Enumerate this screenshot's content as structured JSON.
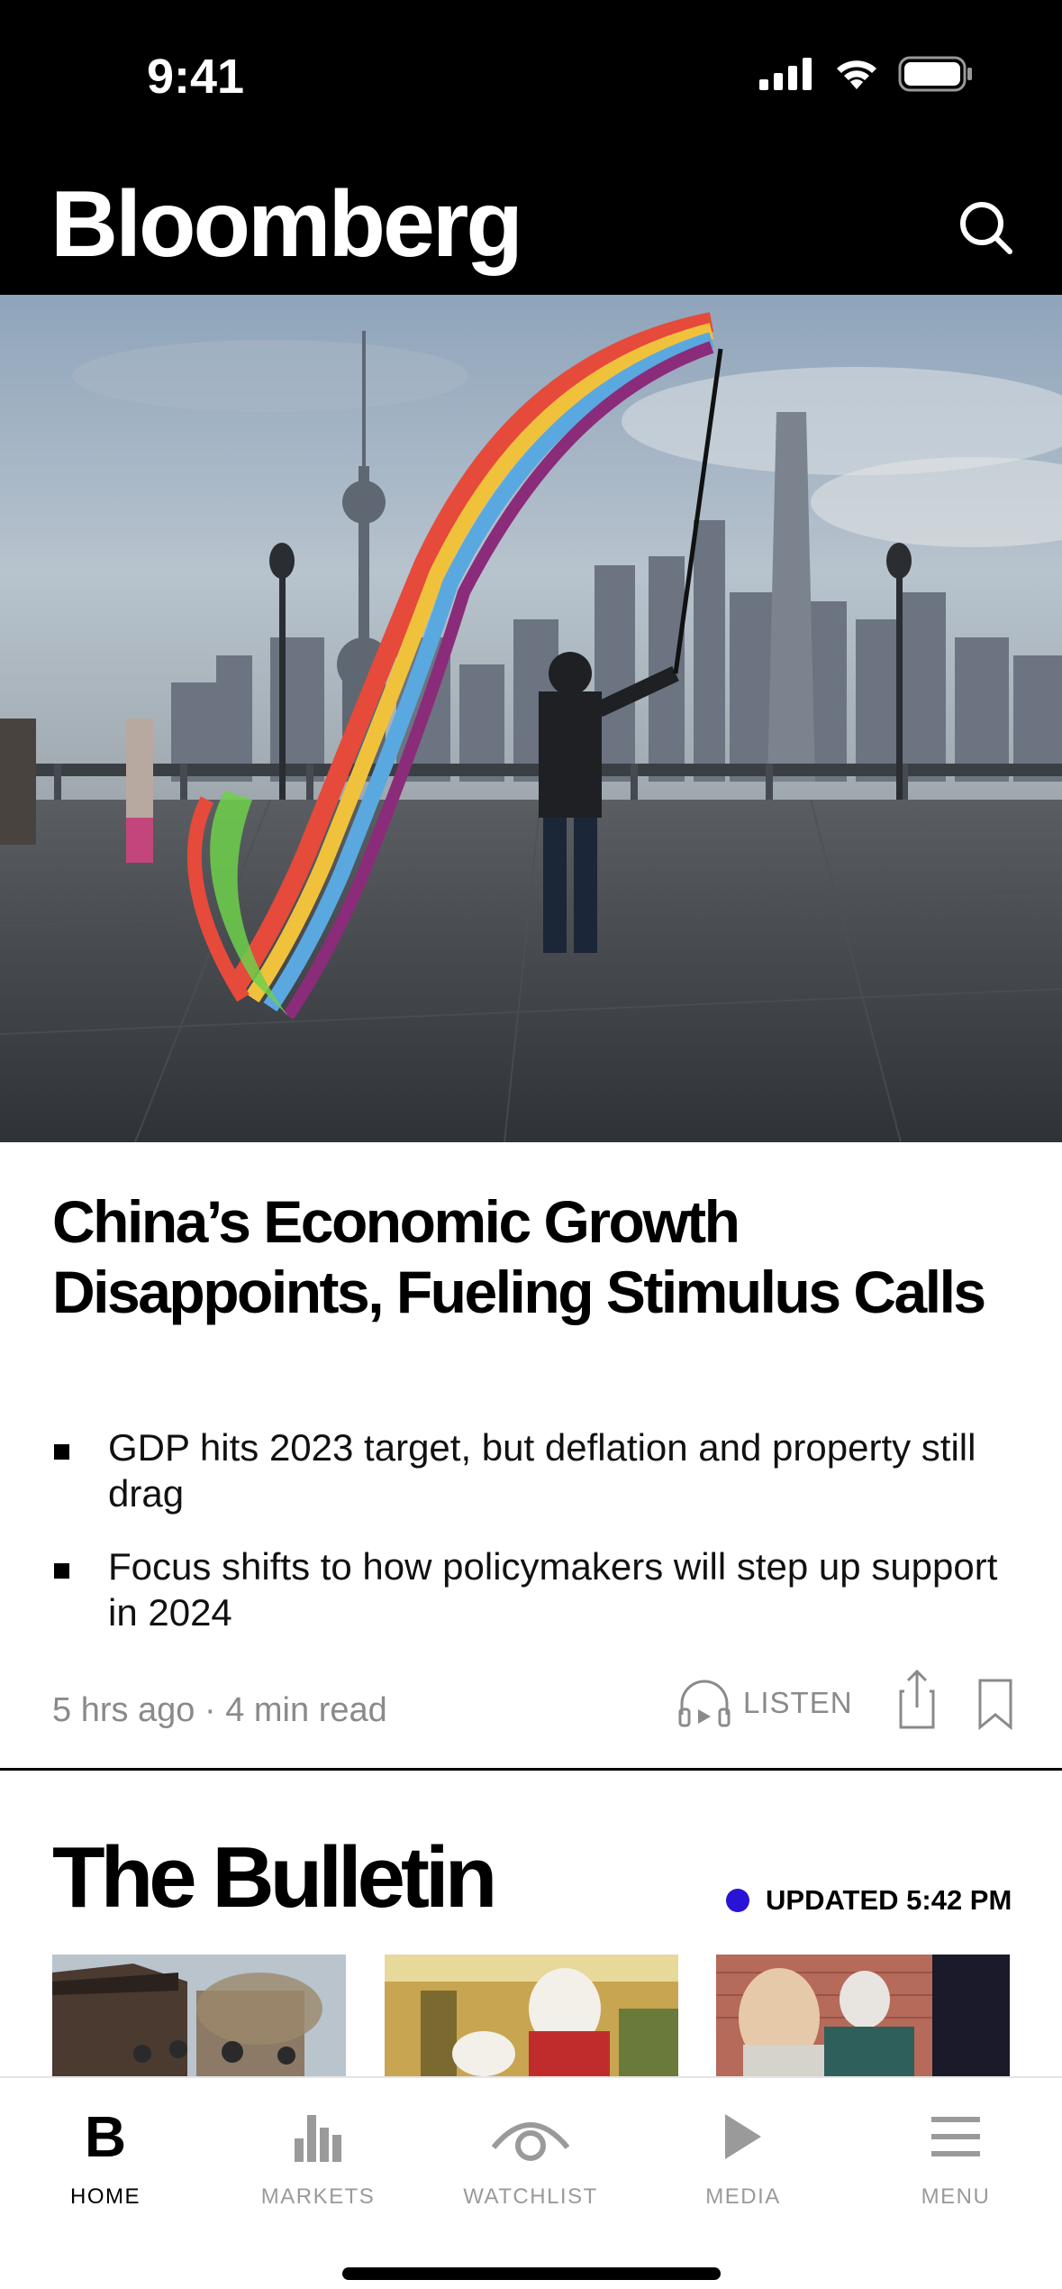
{
  "status_bar": {
    "time": "9:41"
  },
  "header": {
    "brand": "Bloomberg"
  },
  "hero": {
    "image_alt": "Man waving ribbon streamer on Shanghai Bund waterfront with skyline"
  },
  "article": {
    "headline": "China’s Economic Growth Disappoints, Fueling Stimulus Calls",
    "bullets": [
      "GDP hits 2023 target, but deflation and property still drag",
      "Focus shifts to how policymakers will step up support in 2024"
    ],
    "meta": "5 hrs ago · 4 min read",
    "listen_label": "LISTEN"
  },
  "bulletin": {
    "title": "The Bulletin",
    "updated": "UPDATED 5:42 PM",
    "accent_color": "#2a13d6"
  },
  "tabs": [
    {
      "label": "HOME",
      "icon": "bloomberg-b-icon",
      "active": true
    },
    {
      "label": "MARKETS",
      "icon": "bar-chart-icon",
      "active": false
    },
    {
      "label": "WATCHLIST",
      "icon": "eye-icon",
      "active": false
    },
    {
      "label": "MEDIA",
      "icon": "play-icon",
      "active": false
    },
    {
      "label": "MENU",
      "icon": "hamburger-icon",
      "active": false
    }
  ],
  "tab_home_glyph": "B"
}
